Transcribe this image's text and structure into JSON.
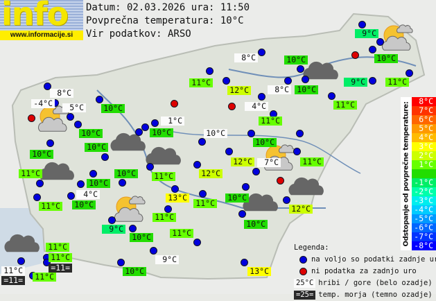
{
  "logo": {
    "word": "info",
    "url": "www.informacije.si"
  },
  "header": {
    "line1": "Datum: 02.03.2026 ura: 11:50",
    "line2": "Povprečna temperatura: 10°C",
    "line3": "Vir podatkov: ARSO"
  },
  "colors": {
    "available": "#0000dd",
    "missing": "#dd0000",
    "mountain_bg": "#fbfbfb",
    "sea_bg": "#2a2a2a"
  },
  "scale": {
    "title": "Odstopanje od povprečne temperature:",
    "steps": [
      {
        "label": "8°C",
        "color": "#ff0000"
      },
      {
        "label": "7°C",
        "color": "#ff3300"
      },
      {
        "label": "6°C",
        "color": "#ff6600"
      },
      {
        "label": "5°C",
        "color": "#ff9900"
      },
      {
        "label": "4°C",
        "color": "#ffbb00"
      },
      {
        "label": "3°C",
        "color": "#ffff00"
      },
      {
        "label": "2°C",
        "color": "#ccff00"
      },
      {
        "label": "1°C",
        "color": "#66ff00"
      },
      {
        "label": "",
        "color": "#22dd00"
      },
      {
        "label": "-1°C",
        "color": "#00ee66"
      },
      {
        "label": "-2°C",
        "color": "#00ffaa"
      },
      {
        "label": "-3°C",
        "color": "#00eeee"
      },
      {
        "label": "-4°C",
        "color": "#00ccff"
      },
      {
        "label": "-5°C",
        "color": "#0099ff"
      },
      {
        "label": "-6°C",
        "color": "#0066ff"
      },
      {
        "label": "-7°C",
        "color": "#0033ff"
      },
      {
        "label": "-8°C",
        "color": "#0000ff"
      }
    ]
  },
  "legend": {
    "title": "Legenda:",
    "available": "na voljo so podatki zadnje ure",
    "missing": "ni podatka za zadnjo uro",
    "mountain_sample": "25°C",
    "mountain": "hribi / gore (belo ozadje)",
    "sea_sample": "=25=",
    "sea": "temp. morja (temno ozadje)"
  },
  "labels": [
    {
      "t": "8°C",
      "k": "m"
    },
    {
      "t": "-4°C",
      "k": "m"
    },
    {
      "t": "5°C",
      "k": "m"
    },
    {
      "t": "10°C",
      "k": "v"
    },
    {
      "t": "10°C",
      "k": "v"
    },
    {
      "t": "10°C",
      "k": "v"
    },
    {
      "t": "10°C",
      "k": "v"
    },
    {
      "t": "11°C",
      "k": "v"
    },
    {
      "t": "10°C",
      "k": "v"
    },
    {
      "t": "10°C",
      "k": "v"
    },
    {
      "t": "11°C",
      "k": "v"
    },
    {
      "t": "10°C",
      "k": "v"
    },
    {
      "t": "1°C",
      "k": "m"
    },
    {
      "t": "11°C",
      "k": "v"
    },
    {
      "t": "12°C",
      "k": "v"
    },
    {
      "t": "8°C",
      "k": "m"
    },
    {
      "t": "8°C",
      "k": "m"
    },
    {
      "t": "4°C",
      "k": "m"
    },
    {
      "t": "11°C",
      "k": "v"
    },
    {
      "t": "10°C",
      "k": "m"
    },
    {
      "t": "10°C",
      "k": "v"
    },
    {
      "t": "10°C",
      "k": "v"
    },
    {
      "t": "9°C",
      "k": "v"
    },
    {
      "t": "10°C",
      "k": "v"
    },
    {
      "t": "9°C",
      "k": "v"
    },
    {
      "t": "11°C",
      "k": "v"
    },
    {
      "t": "11°C",
      "k": "v"
    },
    {
      "t": "11°C",
      "k": "v"
    },
    {
      "t": "10°C",
      "k": "v"
    },
    {
      "t": "12°C",
      "k": "v"
    },
    {
      "t": "7°C",
      "k": "m"
    },
    {
      "t": "12°C",
      "k": "v"
    },
    {
      "t": "13°C",
      "k": "v"
    },
    {
      "t": "11°C",
      "k": "v"
    },
    {
      "t": "10°C",
      "k": "v"
    },
    {
      "t": "12°C",
      "k": "v"
    },
    {
      "t": "10°C",
      "k": "v"
    },
    {
      "t": "11°C",
      "k": "v"
    },
    {
      "t": "11°C",
      "k": "v"
    },
    {
      "t": "9°C",
      "k": "m"
    },
    {
      "t": "13°C",
      "k": "v"
    },
    {
      "t": "4°C",
      "k": "m"
    },
    {
      "t": "11°C",
      "k": "v"
    },
    {
      "t": "10°C",
      "k": "v"
    },
    {
      "t": "9°C",
      "k": "v"
    },
    {
      "t": "10°C",
      "k": "v"
    },
    {
      "t": "11°C",
      "k": "v"
    },
    {
      "t": "11°C",
      "k": "v"
    },
    {
      "t": "=11=",
      "k": "s"
    },
    {
      "t": "11°C",
      "k": "m"
    },
    {
      "t": "=11=",
      "k": "s"
    },
    {
      "t": "11°C",
      "k": "v"
    },
    {
      "t": "10°C",
      "k": "v"
    }
  ],
  "station_status": {
    "available_count": 66,
    "missing_count": 5
  },
  "weather_icons": [
    "partly-sunny",
    "partly-sunny",
    "partly-sunny",
    "partly-sunny",
    "cloudy",
    "cloudy",
    "cloudy",
    "cloudy",
    "cloudy",
    "cloudy",
    "cloudy"
  ]
}
